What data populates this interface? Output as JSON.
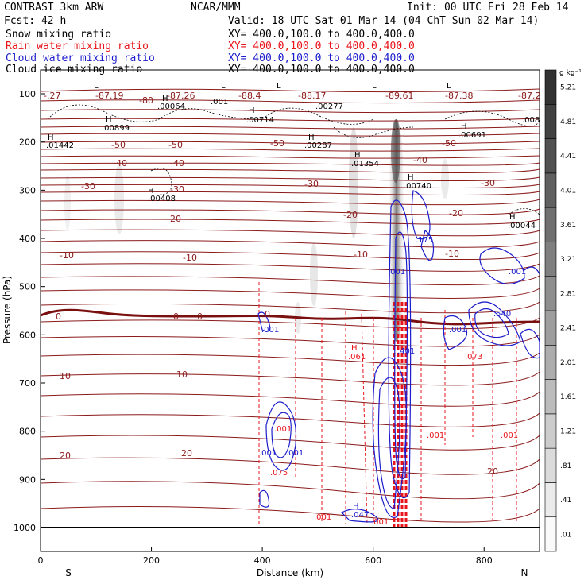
{
  "header": {
    "model": "CONTRAST  3km ARW",
    "center": "NCAR/MMM",
    "init": "Init: 00 UTC Fri 28 Feb 14",
    "fcst": "Fcst:   42 h",
    "valid": "Valid: 18 UTC Sat 01 Mar 14 (04 ChT Sun 02 Mar 14)"
  },
  "legend": [
    {
      "label": "Snow mixing ratio",
      "xy": "XY= 400.0,100.0 to 400.0,400.0",
      "color": "#000000"
    },
    {
      "label": "Rain water mixing ratio",
      "xy": "XY= 400.0,100.0 to 400.0,400.0",
      "color": "#e8141b"
    },
    {
      "label": "Cloud water mixing ratio",
      "xy": "XY= 400.0,100.0 to 400.0,400.0",
      "color": "#1c1ccc"
    },
    {
      "label": "Cloud ice mixing ratio",
      "xy": "XY= 400.0,100.0 to 400.0,400.0",
      "color": "#000000"
    }
  ],
  "chart_data": {
    "type": "cross-section contour",
    "xlabel": "Distance (km)",
    "ylabel": "Pressure (hPa)",
    "xlim": [
      0,
      900
    ],
    "ylim": [
      1050,
      70
    ],
    "x_ticks": [
      0,
      200,
      400,
      600,
      800
    ],
    "y_ticks": [
      100,
      200,
      300,
      400,
      500,
      600,
      700,
      800,
      900,
      1000
    ],
    "direction_labels": [
      "S",
      "N"
    ],
    "colorbar": {
      "unit": "g kg⁻¹",
      "levels": [
        ".01",
        ".41",
        ".81",
        "1.21",
        "1.61",
        "2.01",
        "2.41",
        "2.81",
        "3.21",
        "3.61",
        "4.01",
        "4.41",
        "4.81",
        "5.21"
      ]
    },
    "temperature_contours": [
      {
        "label": "-87.19",
        "p": 100
      },
      {
        "label": "-80",
        "p": 105
      },
      {
        "label": "-87.26",
        "p": 100
      },
      {
        "label": "-88.4",
        "p": 100
      },
      {
        "label": "-88.17",
        "p": 100
      },
      {
        "label": "-89.61",
        "p": 100
      },
      {
        "label": "-87.38",
        "p": 100
      },
      {
        "label": "-50",
        "p": 195
      },
      {
        "label": "-40",
        "p": 240
      },
      {
        "label": "-30",
        "p": 290
      },
      {
        "label": "-20",
        "p": 340
      },
      {
        "label": "-10",
        "p": 430
      },
      {
        "label": "0",
        "p": 555
      },
      {
        "label": "10",
        "p": 690
      },
      {
        "label": "20",
        "p": 860
      }
    ],
    "text_labels": [
      "-87.19",
      "-80",
      "-87.26",
      "-88.4",
      "-88.17",
      "-89.61",
      "-87.38",
      "-87.2",
      "-.27",
      ".00064",
      ".001",
      ".00714",
      ".00277",
      ".00899",
      ".01442",
      ".00287",
      ".01354",
      ".00740",
      ".00691",
      ".008",
      ".00408",
      ".00044",
      "H",
      "L",
      "-50",
      "-40",
      "-30",
      "-20",
      "-10",
      "0",
      "10",
      "20",
      ".175",
      ".001",
      ".540",
      ".061",
      ".073",
      ".075",
      ".047",
      ".401"
    ]
  }
}
